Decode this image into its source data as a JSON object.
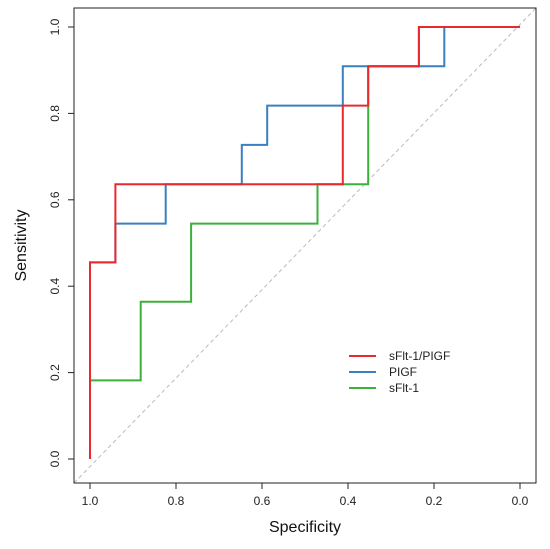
{
  "chart_data": {
    "type": "line",
    "title": "",
    "xlabel": "Specificity",
    "ylabel": "Sensitivity",
    "x_reversed": true,
    "xlim": [
      1.0,
      0.0
    ],
    "ylim": [
      0.0,
      1.0
    ],
    "x_ticks": [
      "1.0",
      "0.8",
      "0.6",
      "0.4",
      "0.2",
      "0.0"
    ],
    "y_ticks": [
      "0.0",
      "0.2",
      "0.4",
      "0.6",
      "0.8",
      "1.0"
    ],
    "grid": false,
    "legend_position": "bottom-right",
    "reference_line": {
      "from": [
        1.0,
        0.0
      ],
      "to": [
        0.0,
        1.0
      ],
      "style": "dashed",
      "color": "#bbbbbb"
    },
    "series": [
      {
        "name": "sFlt-1/PIGF",
        "color": "#e8292e",
        "points": [
          [
            1.0,
            0.0
          ],
          [
            1.0,
            0.455
          ],
          [
            0.941,
            0.455
          ],
          [
            0.941,
            0.636
          ],
          [
            0.647,
            0.636
          ],
          [
            0.412,
            0.636
          ],
          [
            0.412,
            0.818
          ],
          [
            0.353,
            0.818
          ],
          [
            0.353,
            0.909
          ],
          [
            0.235,
            0.909
          ],
          [
            0.235,
            1.0
          ],
          [
            0.0,
            1.0
          ]
        ]
      },
      {
        "name": "PIGF",
        "color": "#3a7fc1",
        "points": [
          [
            1.0,
            0.0
          ],
          [
            1.0,
            0.455
          ],
          [
            0.941,
            0.455
          ],
          [
            0.941,
            0.545
          ],
          [
            0.824,
            0.545
          ],
          [
            0.824,
            0.636
          ],
          [
            0.647,
            0.636
          ],
          [
            0.647,
            0.727
          ],
          [
            0.588,
            0.727
          ],
          [
            0.588,
            0.818
          ],
          [
            0.412,
            0.818
          ],
          [
            0.412,
            0.909
          ],
          [
            0.176,
            0.909
          ],
          [
            0.176,
            1.0
          ],
          [
            0.0,
            1.0
          ]
        ]
      },
      {
        "name": "sFlt-1",
        "color": "#3bb03b",
        "points": [
          [
            1.0,
            0.0
          ],
          [
            1.0,
            0.182
          ],
          [
            0.882,
            0.182
          ],
          [
            0.882,
            0.364
          ],
          [
            0.765,
            0.364
          ],
          [
            0.765,
            0.545
          ],
          [
            0.471,
            0.545
          ],
          [
            0.471,
            0.636
          ],
          [
            0.353,
            0.636
          ],
          [
            0.353,
            0.909
          ],
          [
            0.235,
            0.909
          ],
          [
            0.235,
            1.0
          ],
          [
            0.0,
            1.0
          ]
        ]
      }
    ]
  }
}
